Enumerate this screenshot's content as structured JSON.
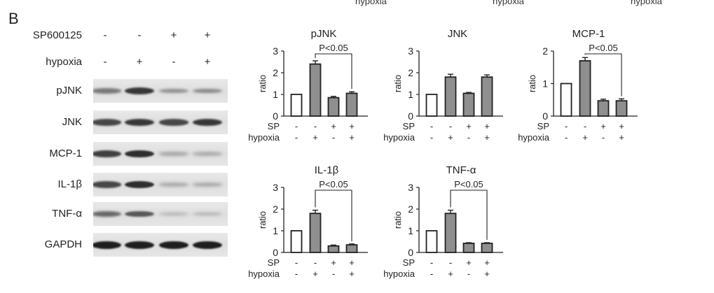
{
  "top_fragments": [
    "hypoxia",
    "hypoxia",
    "hypoxia"
  ],
  "panel_letter": "B",
  "blot": {
    "conditions": [
      {
        "label": "SP600125",
        "signs": [
          "-",
          "-",
          "+",
          "+"
        ]
      },
      {
        "label": "hypoxia",
        "signs": [
          "-",
          "+",
          "-",
          "+"
        ]
      }
    ],
    "rows": [
      {
        "label": "pJNK",
        "intensity": [
          0.45,
          0.85,
          0.3,
          0.35
        ]
      },
      {
        "label": "JNK",
        "intensity": [
          0.75,
          0.85,
          0.75,
          0.85
        ]
      },
      {
        "label": "MCP-1",
        "intensity": [
          0.8,
          0.9,
          0.18,
          0.15
        ]
      },
      {
        "label": "IL-1β",
        "intensity": [
          0.75,
          0.9,
          0.15,
          0.15
        ]
      },
      {
        "label": "TNF-α",
        "intensity": [
          0.55,
          0.65,
          0.1,
          0.12
        ]
      },
      {
        "label": "GAPDH",
        "intensity": [
          1.0,
          1.0,
          1.0,
          1.0
        ]
      }
    ]
  },
  "chart_data": [
    {
      "type": "bar",
      "title": "pJNK",
      "ylabel": "ratio",
      "ylim": [
        0,
        3
      ],
      "yticks": [
        0,
        1,
        2,
        3
      ],
      "values": [
        1.0,
        2.4,
        0.85,
        1.05
      ],
      "errors": [
        0,
        0.15,
        0.06,
        0.07
      ],
      "fill": [
        "white",
        "gray",
        "gray",
        "gray"
      ],
      "significance": {
        "label": "P<0.05",
        "from": 1,
        "to": 3
      },
      "rows": [
        {
          "label": "SP",
          "signs": [
            "-",
            "-",
            "+",
            "+"
          ]
        },
        {
          "label": "hypoxia",
          "signs": [
            "-",
            "+",
            "-",
            "+"
          ]
        }
      ]
    },
    {
      "type": "bar",
      "title": "JNK",
      "ylabel": "ratio",
      "ylim": [
        0,
        3
      ],
      "yticks": [
        0,
        1,
        2,
        3
      ],
      "values": [
        1.0,
        1.8,
        1.05,
        1.8
      ],
      "errors": [
        0,
        0.13,
        0.04,
        0.1
      ],
      "fill": [
        "white",
        "gray",
        "gray",
        "gray"
      ],
      "significance": null,
      "rows": [
        {
          "label": "SP",
          "signs": [
            "-",
            "-",
            "+",
            "+"
          ]
        },
        {
          "label": "hypoxia",
          "signs": [
            "-",
            "+",
            "-",
            "+"
          ]
        }
      ]
    },
    {
      "type": "bar",
      "title": "MCP-1",
      "ylabel": "ratio",
      "ylim": [
        0,
        2
      ],
      "yticks": [
        0,
        1,
        2
      ],
      "values": [
        1.0,
        1.7,
        0.47,
        0.47
      ],
      "errors": [
        0,
        0.1,
        0.05,
        0.06
      ],
      "fill": [
        "white",
        "gray",
        "gray",
        "gray"
      ],
      "significance": {
        "label": "P<0.05",
        "from": 1,
        "to": 3
      },
      "rows": [
        {
          "label": "SP",
          "signs": [
            "-",
            "-",
            "+",
            "+"
          ]
        },
        {
          "label": "hypoxia",
          "signs": [
            "-",
            "+",
            "-",
            "+"
          ]
        }
      ]
    },
    {
      "type": "bar",
      "title": "IL-1β",
      "ylabel": "ratio",
      "ylim": [
        0,
        3
      ],
      "yticks": [
        0,
        1,
        2,
        3
      ],
      "values": [
        1.0,
        1.8,
        0.3,
        0.35
      ],
      "errors": [
        0,
        0.15,
        0.04,
        0.04
      ],
      "fill": [
        "white",
        "gray",
        "gray",
        "gray"
      ],
      "significance": {
        "label": "P<0.05",
        "from": 1,
        "to": 3
      },
      "rows": [
        {
          "label": "SP",
          "signs": [
            "-",
            "-",
            "+",
            "+"
          ]
        },
        {
          "label": "hypoxia",
          "signs": [
            "-",
            "+",
            "-",
            "+"
          ]
        }
      ]
    },
    {
      "type": "bar",
      "title": "TNF-α",
      "ylabel": "ratio",
      "ylim": [
        0,
        3
      ],
      "yticks": [
        0,
        1,
        2,
        3
      ],
      "values": [
        1.0,
        1.8,
        0.42,
        0.42
      ],
      "errors": [
        0,
        0.15,
        0.03,
        0.03
      ],
      "fill": [
        "white",
        "gray",
        "gray",
        "gray"
      ],
      "significance": {
        "label": "P<0.05",
        "from": 1,
        "to": 3
      },
      "rows": [
        {
          "label": "SP",
          "signs": [
            "-",
            "-",
            "+",
            "+"
          ]
        },
        {
          "label": "hypoxia",
          "signs": [
            "-",
            "+",
            "-",
            "+"
          ]
        }
      ]
    }
  ],
  "colors": {
    "bar_gray": "#8f8f8f",
    "bar_white": "#ffffff",
    "stroke": "#222222",
    "band": "#2a2a2a"
  }
}
